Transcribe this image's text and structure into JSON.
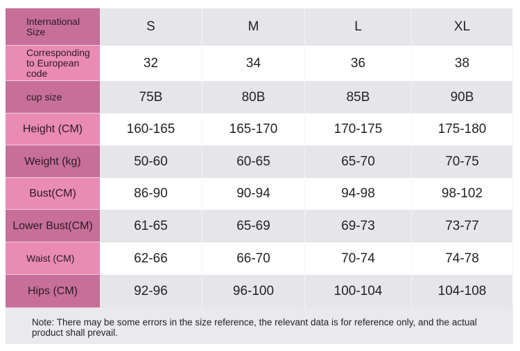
{
  "table": {
    "header": [
      "International Size",
      "S",
      "M",
      "L",
      "XL"
    ],
    "rows": [
      [
        "Corresponding to European code",
        "32",
        "34",
        "36",
        "38"
      ],
      [
        "cup size",
        "75B",
        "80B",
        "85B",
        "90B"
      ],
      [
        "Height (CM)",
        "160-165",
        "165-170",
        "170-175",
        "175-180"
      ],
      [
        "Weight (kg)",
        "50-60",
        "60-65",
        "65-70",
        "70-75"
      ],
      [
        "Bust(CM)",
        "86-90",
        "90-94",
        "94-98",
        "98-102"
      ],
      [
        "Lower Bust(CM)",
        "61-65",
        "65-69",
        "69-73",
        "73-77"
      ],
      [
        "Waist (CM)",
        "62-66",
        "66-70",
        "70-74",
        "74-78"
      ],
      [
        "Hips (CM)",
        "92-96",
        "96-100",
        "100-104",
        "104-108"
      ]
    ]
  },
  "note": "Note: There may be some errors in the size reference, the relevant data is for reference only, and the actual product shall prevail."
}
